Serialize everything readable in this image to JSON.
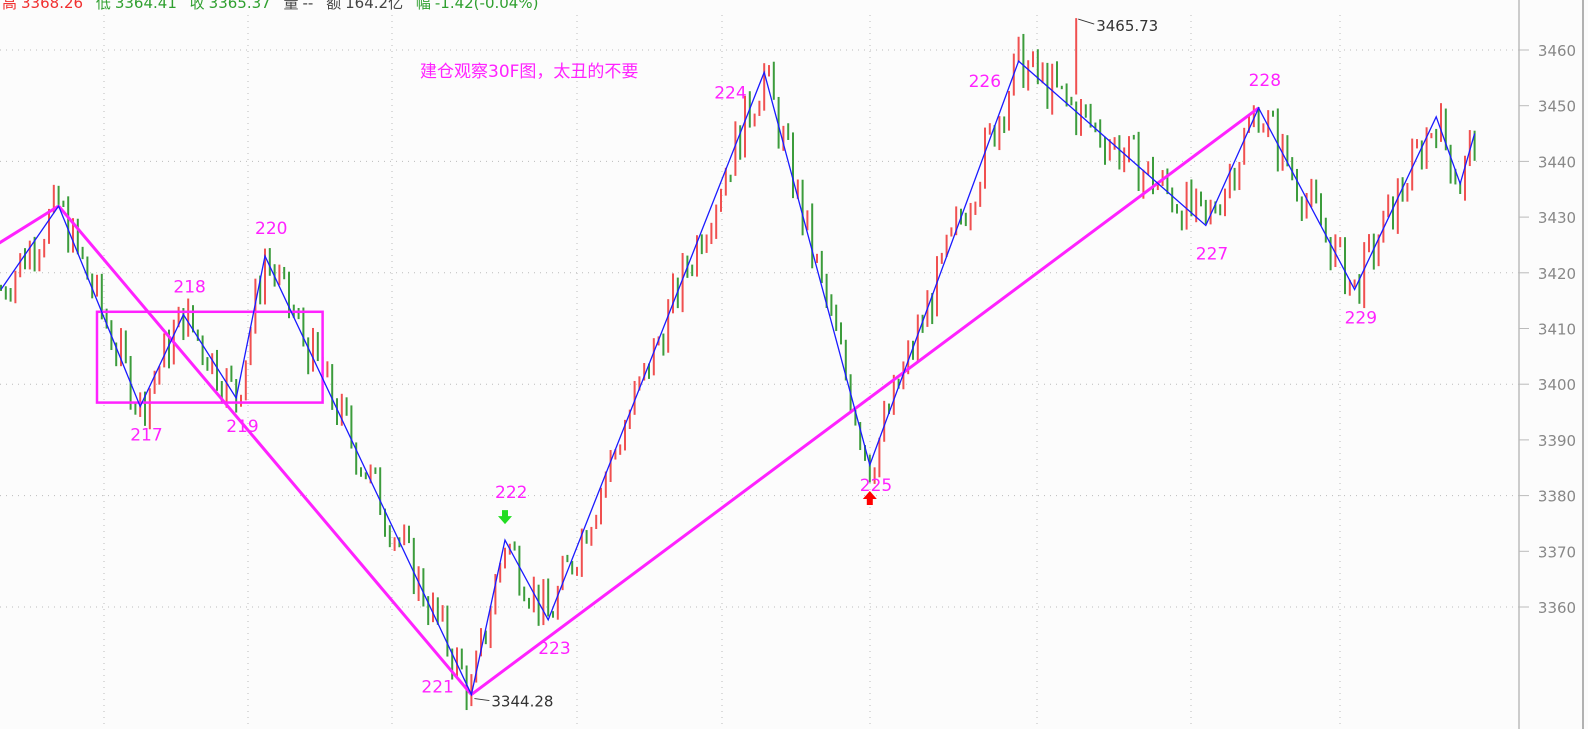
{
  "header": {
    "high_label": "高",
    "high": "3368.26",
    "low_label": "低",
    "low": "3364.41",
    "close_label": "收",
    "close": "3365.37",
    "volume_label": "量",
    "volume": "--",
    "amount_label": "额",
    "amount": "164.2亿",
    "range_label": "幅",
    "range": "-1.42(-0.04%)"
  },
  "chart_data": {
    "type": "line",
    "subtype": "ohlc-bars-with-zigzag",
    "title": "",
    "annotation": "建仓观察30F图，太丑的不要",
    "y_axis": {
      "position": "right",
      "ticks": [
        3460,
        3450,
        3440,
        3430,
        3420,
        3410,
        3400,
        3390,
        3380,
        3370,
        3360
      ],
      "ylim": [
        3340,
        3469
      ]
    },
    "grid": true,
    "colors": {
      "up": "#f05050",
      "down": "#3c9c3c",
      "zigzag": "#1a1aff",
      "trendline": "#ff22ff",
      "box": "#ff22ff",
      "signal_buy": "#ff0000",
      "signal_sell": "#22dd22"
    },
    "zigzag_pivots": [
      {
        "bar": 0,
        "price": 3417,
        "label": ""
      },
      {
        "bar": 12,
        "price": 3432,
        "label": ""
      },
      {
        "bar": 29,
        "price": 3396,
        "label": "217"
      },
      {
        "bar": 38,
        "price": 3412.5,
        "label": "218"
      },
      {
        "bar": 49,
        "price": 3397.5,
        "label": "219"
      },
      {
        "bar": 55,
        "price": 3423,
        "label": "220"
      },
      {
        "bar": 98,
        "price": 3344.28,
        "label": "221"
      },
      {
        "bar": 105,
        "price": 3372,
        "label": "222"
      },
      {
        "bar": 114,
        "price": 3357.7,
        "label": "223"
      },
      {
        "bar": 159,
        "price": 3456,
        "label": "224"
      },
      {
        "bar": 181,
        "price": 3385.5,
        "label": "225"
      },
      {
        "bar": 212,
        "price": 3458,
        "label": "226"
      },
      {
        "bar": 251,
        "price": 3428.5,
        "label": "227"
      },
      {
        "bar": 262,
        "price": 3449.6,
        "label": "228"
      },
      {
        "bar": 282,
        "price": 3417,
        "label": "229"
      },
      {
        "bar": 299,
        "price": 3448,
        "label": ""
      },
      {
        "bar": 304,
        "price": 3436,
        "label": ""
      },
      {
        "bar": 307,
        "price": 3445,
        "label": ""
      }
    ],
    "extremes": {
      "high": {
        "bar": 224,
        "price": 3465.73,
        "label": "3465.73"
      },
      "low": {
        "bar": 98,
        "price": 3344.28,
        "label": "3344.28"
      }
    },
    "trendlines": [
      {
        "from": {
          "bar": -1,
          "price": 3425
        },
        "to": {
          "bar": 12,
          "price": 3432
        }
      },
      {
        "from": {
          "bar": 12,
          "price": 3432
        },
        "to": {
          "bar": 98,
          "price": 3344.28
        }
      },
      {
        "from": {
          "bar": 98,
          "price": 3344.28
        },
        "to": {
          "bar": 262,
          "price": 3449.6
        }
      }
    ],
    "box": {
      "bar_from": 20,
      "bar_to": 67,
      "price_top": 3413,
      "price_bottom": 3396.7
    },
    "signals": [
      {
        "bar": 105,
        "type": "sell",
        "direction": "down"
      },
      {
        "bar": 181,
        "type": "buy",
        "direction": "up"
      }
    ]
  }
}
